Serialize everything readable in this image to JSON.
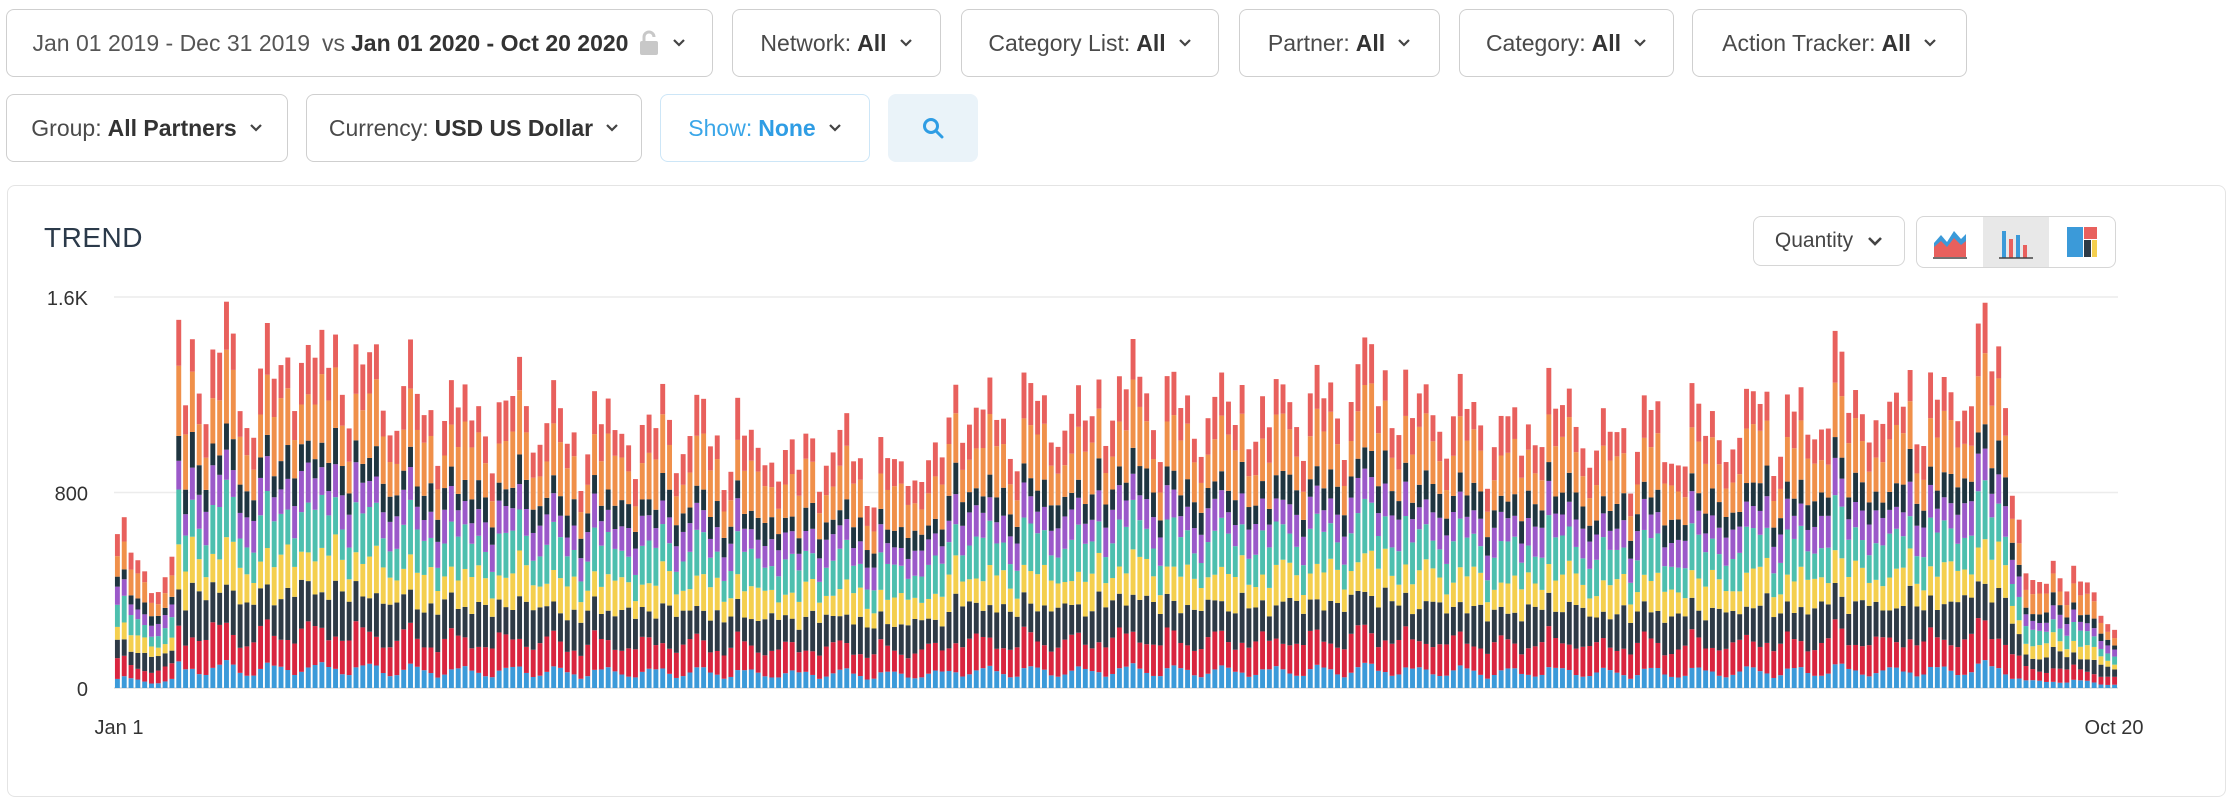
{
  "filters": {
    "date": {
      "base": "Jan 01 2019 - Dec 31 2019",
      "vs": "vs",
      "compare": "Jan 01 2020 - Oct 20 2020",
      "lock_icon": "lock-open-icon",
      "chevron_icon": "chevron-down-icon"
    },
    "network": {
      "label": "Network:",
      "value": "All"
    },
    "category_list": {
      "label": "Category List:",
      "value": "All"
    },
    "partner": {
      "label": "Partner:",
      "value": "All"
    },
    "category": {
      "label": "Category:",
      "value": "All"
    },
    "action_tracker": {
      "label": "Action Tracker:",
      "value": "All"
    },
    "group": {
      "label": "Group:",
      "value": "All Partners"
    },
    "currency": {
      "label": "Currency:",
      "value": "USD US Dollar"
    },
    "show": {
      "label": "Show:",
      "value": "None"
    },
    "search_icon": "search-icon"
  },
  "panel": {
    "title": "TREND",
    "metric": "Quantity",
    "view_buttons": [
      {
        "name": "area-chart-icon",
        "active": false
      },
      {
        "name": "bar-chart-icon",
        "active": true
      },
      {
        "name": "treemap-icon",
        "active": false
      }
    ]
  },
  "colors": {
    "accent": "#3aa6e8",
    "series": [
      "#3b9ad9",
      "#d9253f",
      "#2e3a46",
      "#f4cf4e",
      "#4dbfae",
      "#9b59c9",
      "#1f3540",
      "#f0904a",
      "#e8605d"
    ]
  },
  "chart_data": {
    "type": "bar",
    "stacked": true,
    "x_range": [
      "Jan 1",
      "Oct 20"
    ],
    "x_tick_labels": [
      "Jan 1",
      "Oct 20"
    ],
    "y_tick_labels": [
      "0",
      "800",
      "1.6K"
    ],
    "ylim": [
      0,
      1600
    ],
    "grid": true,
    "legend": "none",
    "num_days": 294,
    "keypoints": [
      [
        0,
        590
      ],
      [
        1,
        630
      ],
      [
        2,
        600
      ],
      [
        3,
        520
      ],
      [
        5,
        470
      ],
      [
        6,
        420
      ],
      [
        8,
        540
      ],
      [
        9,
        1430
      ],
      [
        10,
        1200
      ],
      [
        12,
        1470
      ],
      [
        14,
        1320
      ],
      [
        16,
        1440
      ],
      [
        18,
        1300
      ],
      [
        20,
        1240
      ],
      [
        22,
        1300
      ],
      [
        26,
        1420
      ],
      [
        30,
        1390
      ],
      [
        34,
        1380
      ],
      [
        38,
        1280
      ],
      [
        42,
        1250
      ],
      [
        46,
        1160
      ],
      [
        50,
        1200
      ],
      [
        55,
        1120
      ],
      [
        60,
        1240
      ],
      [
        64,
        1100
      ],
      [
        68,
        1050
      ],
      [
        72,
        1140
      ],
      [
        76,
        1050
      ],
      [
        80,
        1130
      ],
      [
        84,
        1100
      ],
      [
        88,
        1050
      ],
      [
        92,
        1040
      ],
      [
        96,
        1000
      ],
      [
        100,
        960
      ],
      [
        104,
        1040
      ],
      [
        108,
        980
      ],
      [
        112,
        900
      ],
      [
        116,
        950
      ],
      [
        120,
        940
      ],
      [
        124,
        1260
      ],
      [
        128,
        1120
      ],
      [
        132,
        1150
      ],
      [
        136,
        1180
      ],
      [
        140,
        1130
      ],
      [
        144,
        1190
      ],
      [
        148,
        1300
      ],
      [
        152,
        1240
      ],
      [
        156,
        1150
      ],
      [
        160,
        1180
      ],
      [
        164,
        1200
      ],
      [
        168,
        1140
      ],
      [
        172,
        1230
      ],
      [
        176,
        1180
      ],
      [
        180,
        1220
      ],
      [
        184,
        1370
      ],
      [
        188,
        1200
      ],
      [
        192,
        1190
      ],
      [
        196,
        1160
      ],
      [
        200,
        1120
      ],
      [
        204,
        1050
      ],
      [
        208,
        1140
      ],
      [
        212,
        1210
      ],
      [
        216,
        1060
      ],
      [
        220,
        1030
      ],
      [
        224,
        1130
      ],
      [
        228,
        1000
      ],
      [
        232,
        1150
      ],
      [
        236,
        1050
      ],
      [
        240,
        1190
      ],
      [
        244,
        1130
      ],
      [
        248,
        1100
      ],
      [
        252,
        1320
      ],
      [
        256,
        1180
      ],
      [
        260,
        1150
      ],
      [
        264,
        1250
      ],
      [
        268,
        1160
      ],
      [
        272,
        1370
      ],
      [
        276,
        1440
      ],
      [
        278,
        950
      ],
      [
        280,
        480
      ],
      [
        282,
        420
      ],
      [
        285,
        530
      ],
      [
        288,
        440
      ],
      [
        291,
        340
      ],
      [
        293,
        280
      ]
    ],
    "segment_shares": [
      0.06,
      0.11,
      0.13,
      0.11,
      0.13,
      0.1,
      0.08,
      0.16,
      0.12
    ]
  }
}
